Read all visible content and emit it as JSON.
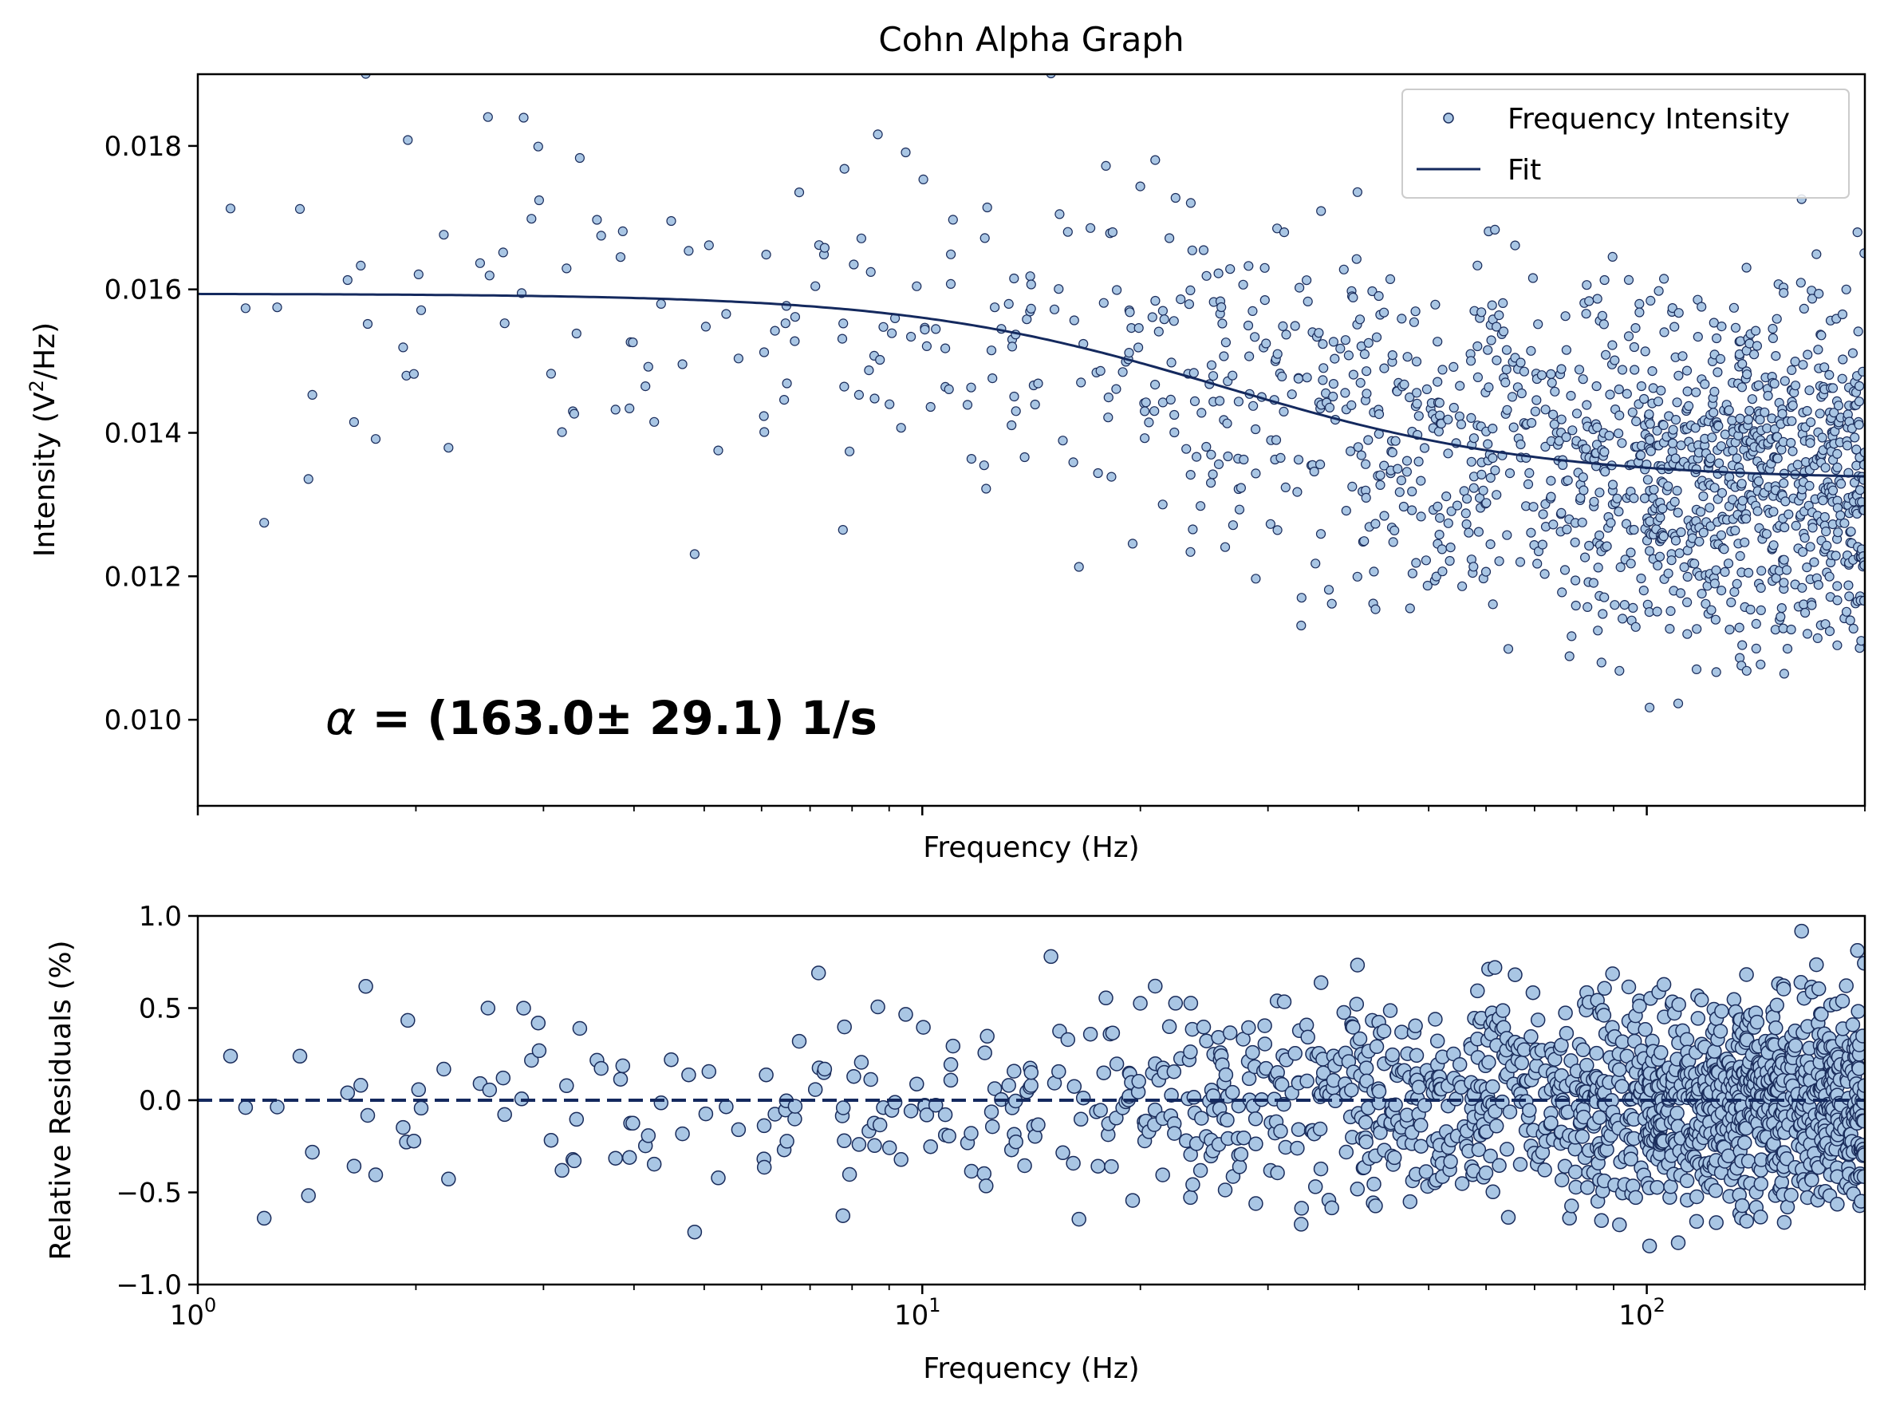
{
  "colors": {
    "marker_fill": "#a9c6e4",
    "marker_edge": "#1a2c5b",
    "fit_line": "#14295e",
    "axes": "#000000"
  },
  "chart_data": [
    {
      "type": "scatter",
      "title": "Cohn Alpha Graph",
      "xlabel": "Frequency (Hz)",
      "ylabel_main": "Intensity (V",
      "ylabel_sup": "2",
      "ylabel_tail": "/Hz)",
      "x_scale": "log",
      "xlim": [
        1,
        200
      ],
      "ylim": [
        0.0088,
        0.019
      ],
      "y_ticks": [
        "0.010",
        "0.012",
        "0.014",
        "0.016",
        "0.018"
      ],
      "grid": false,
      "legend_position": "top-right",
      "legend": [
        "Frequency Intensity",
        "Fit"
      ],
      "annotation_symbol": "α",
      "annotation_value": " = (163.0± 29.1) 1/s",
      "fit_model": {
        "plateau": 0.01335,
        "amplitude": 0.00259,
        "alpha": 163.0,
        "alpha_uncertainty": 29.1
      },
      "series": [
        {
          "name": "Frequency Intensity",
          "style": "markers",
          "points": 1400,
          "x_range": [
            1.08,
            200
          ]
        },
        {
          "name": "Fit",
          "style": "line"
        }
      ]
    },
    {
      "type": "scatter",
      "xlabel": "Frequency (Hz)",
      "ylabel": "Relative Residuals (%)",
      "x_scale": "log",
      "xlim": [
        1,
        200
      ],
      "ylim": [
        -1.0,
        1.0
      ],
      "y_ticks": [
        "−1.0",
        "−0.5",
        "0.0",
        "0.5",
        "1.0"
      ],
      "x_ticks": [
        {
          "base": "10",
          "exp": "0"
        },
        {
          "base": "10",
          "exp": "1"
        },
        {
          "base": "10",
          "exp": "2"
        }
      ],
      "reference_line": 0.0,
      "grid": false
    }
  ]
}
